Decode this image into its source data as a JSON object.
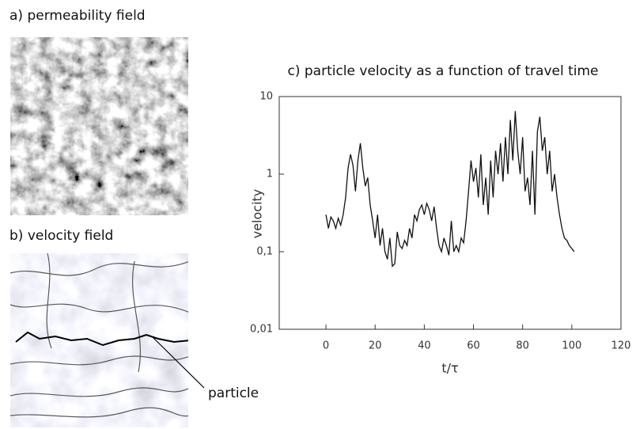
{
  "panels": {
    "a": {
      "title": "a) permeability field"
    },
    "b": {
      "title": "b) velocity field",
      "annotation": "particle"
    }
  },
  "chart_data": {
    "type": "line",
    "title": "c) particle velocity as a function of travel time",
    "x_label": "t/τ",
    "y_label": "velocity",
    "y_scale": "log",
    "color": "#111111",
    "x": [
      0,
      1,
      2,
      3,
      4,
      5,
      6,
      7,
      8,
      9,
      10,
      11,
      12,
      13,
      14,
      15,
      16,
      17,
      18,
      19,
      20,
      21,
      22,
      23,
      24,
      25,
      26,
      27,
      28,
      29,
      30,
      31,
      32,
      33,
      34,
      35,
      36,
      37,
      38,
      39,
      40,
      41,
      42,
      43,
      44,
      45,
      46,
      47,
      48,
      49,
      50,
      51,
      52,
      53,
      54,
      55,
      56,
      57,
      58,
      59,
      60,
      61,
      62,
      63,
      64,
      65,
      66,
      67,
      68,
      69,
      70,
      71,
      72,
      73,
      74,
      75,
      76,
      77,
      78,
      79,
      80,
      81,
      82,
      83,
      84,
      85,
      86,
      87,
      88,
      89,
      90,
      91,
      92,
      93,
      94,
      95,
      96,
      97,
      98,
      99,
      100,
      101
    ],
    "values": [
      0.3,
      0.2,
      0.28,
      0.25,
      0.2,
      0.27,
      0.22,
      0.3,
      0.5,
      1.2,
      1.8,
      1.3,
      0.6,
      1.5,
      2.5,
      1.2,
      0.7,
      0.9,
      0.4,
      0.25,
      0.15,
      0.3,
      0.12,
      0.2,
      0.1,
      0.08,
      0.15,
      0.065,
      0.07,
      0.18,
      0.12,
      0.11,
      0.14,
      0.12,
      0.2,
      0.15,
      0.3,
      0.25,
      0.35,
      0.4,
      0.3,
      0.42,
      0.35,
      0.25,
      0.38,
      0.2,
      0.12,
      0.1,
      0.15,
      0.12,
      0.09,
      0.25,
      0.1,
      0.12,
      0.1,
      0.15,
      0.13,
      0.25,
      0.6,
      1.5,
      0.8,
      1.2,
      0.5,
      1.8,
      0.4,
      0.9,
      0.3,
      1.5,
      0.5,
      2.0,
      1.0,
      2.5,
      0.8,
      3.0,
      1.0,
      5.0,
      1.5,
      6.5,
      2.0,
      1.0,
      3.0,
      0.6,
      0.9,
      0.4,
      2.0,
      0.3,
      3.5,
      5.5,
      2.0,
      3.0,
      1.0,
      2.0,
      0.6,
      1.0,
      0.5,
      0.3,
      0.2,
      0.15,
      0.14,
      0.12,
      0.11,
      0.1
    ],
    "xlim": [
      -19,
      120
    ],
    "xticks": [
      0,
      20,
      40,
      60,
      80,
      100,
      120
    ],
    "ylim": [
      0.01,
      10
    ],
    "yticks": [
      {
        "value": 0.01,
        "label": "0,01"
      },
      {
        "value": 0.1,
        "label": "0,1"
      },
      1,
      10
    ]
  }
}
